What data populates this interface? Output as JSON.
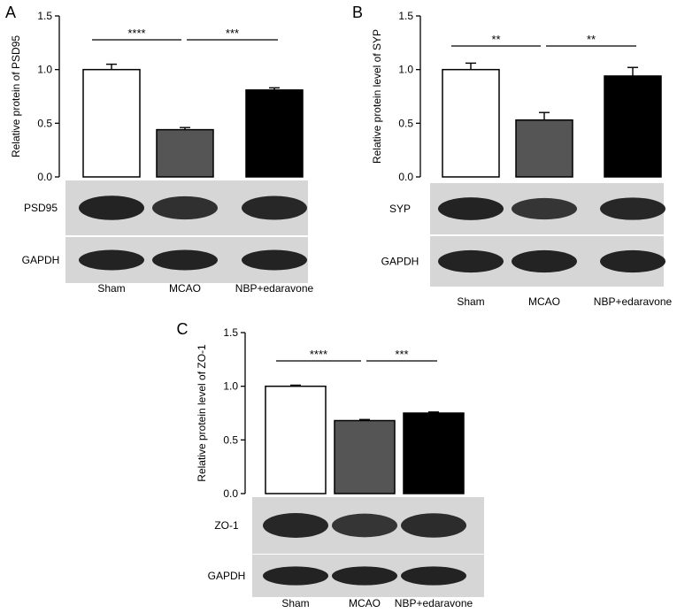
{
  "chart_data": [
    {
      "panel": "A",
      "type": "bar",
      "ylabel": "Relative protein of PSD95",
      "ylim": [
        0,
        1.5
      ],
      "yticks": [
        "0.0",
        "0.5",
        "1.0",
        "1.5"
      ],
      "categories": [
        "Sham",
        "MCAO",
        "NBP+edaravone"
      ],
      "values": [
        1.0,
        0.44,
        0.81
      ],
      "errors": [
        0.05,
        0.02,
        0.02
      ],
      "bar_colors": [
        "#ffffff",
        "#555555",
        "#000000"
      ],
      "significance": [
        {
          "from": 0,
          "to": 1,
          "label": "****"
        },
        {
          "from": 1,
          "to": 2,
          "label": "***"
        }
      ],
      "blots": [
        {
          "label": "PSD95",
          "intensity": [
            0.95,
            0.8,
            0.9
          ]
        },
        {
          "label": "GAPDH",
          "intensity": [
            0.95,
            0.95,
            0.95
          ]
        }
      ]
    },
    {
      "panel": "B",
      "type": "bar",
      "ylabel": "Relative protein level of SYP",
      "ylim": [
        0,
        1.5
      ],
      "yticks": [
        "0.0",
        "0.5",
        "1.0",
        "1.5"
      ],
      "categories": [
        "Sham",
        "MCAO",
        "NBP+edaravone"
      ],
      "values": [
        1.0,
        0.53,
        0.94
      ],
      "errors": [
        0.06,
        0.07,
        0.08
      ],
      "bar_colors": [
        "#ffffff",
        "#555555",
        "#000000"
      ],
      "significance": [
        {
          "from": 0,
          "to": 1,
          "label": "**"
        },
        {
          "from": 1,
          "to": 2,
          "label": "**"
        }
      ],
      "blots": [
        {
          "label": "SYP",
          "intensity": [
            0.95,
            0.75,
            0.9
          ]
        },
        {
          "label": "GAPDH",
          "intensity": [
            0.95,
            0.95,
            0.95
          ]
        }
      ]
    },
    {
      "panel": "C",
      "type": "bar",
      "ylabel": "Relative protein level of ZO-1",
      "ylim": [
        0,
        1.5
      ],
      "yticks": [
        "0.0",
        "0.5",
        "1.0",
        "1.5"
      ],
      "categories": [
        "Sham",
        "MCAO",
        "NBP+edaravone"
      ],
      "values": [
        1.0,
        0.68,
        0.75
      ],
      "errors": [
        0.01,
        0.01,
        0.01
      ],
      "bar_colors": [
        "#ffffff",
        "#555555",
        "#000000"
      ],
      "significance": [
        {
          "from": 0,
          "to": 1,
          "label": "****"
        },
        {
          "from": 1,
          "to": 2,
          "label": "***"
        }
      ],
      "blots": [
        {
          "label": "ZO-1",
          "intensity": [
            0.9,
            0.75,
            0.85
          ]
        },
        {
          "label": "GAPDH",
          "intensity": [
            0.95,
            0.95,
            0.95
          ]
        }
      ]
    }
  ]
}
